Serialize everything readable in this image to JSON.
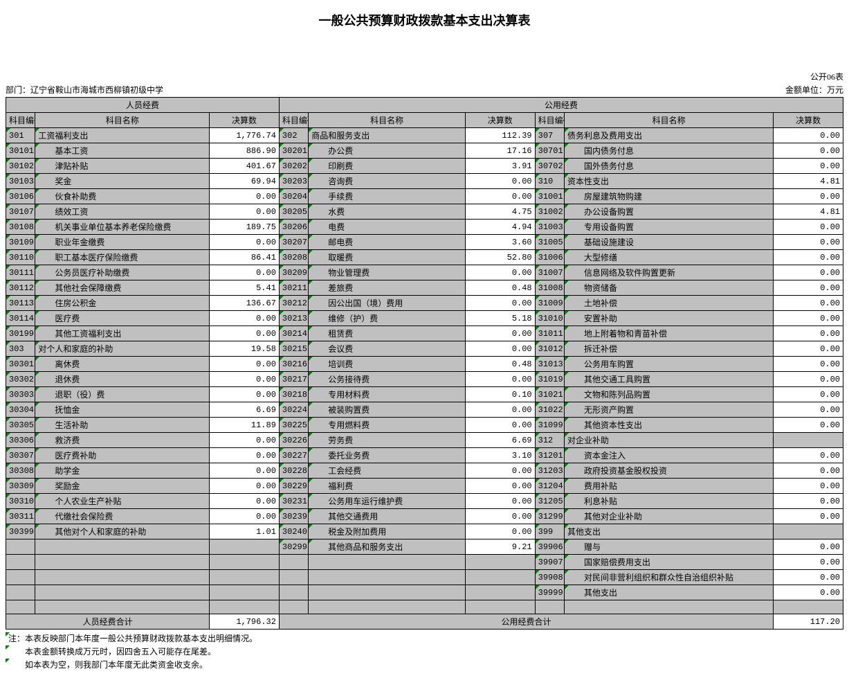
{
  "title": "一般公共预算财政拨款基本支出决算表",
  "form_code": "公开06表",
  "dept_label": "部门：",
  "dept": "辽宁省鞍山市海城市西柳镇初级中学",
  "unit": "金额单位：万元",
  "group_a": "人员经费",
  "group_b": "公用经费",
  "h_code": "科目编码",
  "h_name": "科目名称",
  "h_amt": "决算数",
  "col_a": [
    {
      "code": "301",
      "name": "工资福利支出",
      "amt": "1,776.74",
      "sub": false
    },
    {
      "code": "30101",
      "name": "基本工资",
      "amt": "886.90",
      "sub": true
    },
    {
      "code": "30102",
      "name": "津贴补贴",
      "amt": "401.67",
      "sub": true
    },
    {
      "code": "30103",
      "name": "奖金",
      "amt": "69.94",
      "sub": true
    },
    {
      "code": "30106",
      "name": "伙食补助费",
      "amt": "0.00",
      "sub": true
    },
    {
      "code": "30107",
      "name": "绩效工资",
      "amt": "0.00",
      "sub": true
    },
    {
      "code": "30108",
      "name": "机关事业单位基本养老保险缴费",
      "amt": "189.75",
      "sub": true
    },
    {
      "code": "30109",
      "name": "职业年金缴费",
      "amt": "0.00",
      "sub": true
    },
    {
      "code": "30110",
      "name": "职工基本医疗保险缴费",
      "amt": "86.41",
      "sub": true
    },
    {
      "code": "30111",
      "name": "公务员医疗补助缴费",
      "amt": "0.00",
      "sub": true
    },
    {
      "code": "30112",
      "name": "其他社会保障缴费",
      "amt": "5.41",
      "sub": true
    },
    {
      "code": "30113",
      "name": "住房公积金",
      "amt": "136.67",
      "sub": true
    },
    {
      "code": "30114",
      "name": "医疗费",
      "amt": "0.00",
      "sub": true
    },
    {
      "code": "30199",
      "name": "其他工资福利支出",
      "amt": "0.00",
      "sub": true
    },
    {
      "code": "303",
      "name": "对个人和家庭的补助",
      "amt": "19.58",
      "sub": false
    },
    {
      "code": "30301",
      "name": "离休费",
      "amt": "0.00",
      "sub": true
    },
    {
      "code": "30302",
      "name": "退休费",
      "amt": "0.00",
      "sub": true
    },
    {
      "code": "30303",
      "name": "退职（役）费",
      "amt": "0.00",
      "sub": true
    },
    {
      "code": "30304",
      "name": "抚恤金",
      "amt": "6.69",
      "sub": true
    },
    {
      "code": "30305",
      "name": "生活补助",
      "amt": "11.89",
      "sub": true
    },
    {
      "code": "30306",
      "name": "救济费",
      "amt": "0.00",
      "sub": true
    },
    {
      "code": "30307",
      "name": "医疗费补助",
      "amt": "0.00",
      "sub": true
    },
    {
      "code": "30308",
      "name": "助学金",
      "amt": "0.00",
      "sub": true
    },
    {
      "code": "30309",
      "name": "奖励金",
      "amt": "0.00",
      "sub": true
    },
    {
      "code": "30310",
      "name": "个人农业生产补贴",
      "amt": "0.00",
      "sub": true
    },
    {
      "code": "30311",
      "name": "代缴社会保险费",
      "amt": "0.00",
      "sub": true
    },
    {
      "code": "30399",
      "name": "其他对个人和家庭的补助",
      "amt": "1.01",
      "sub": true
    },
    {
      "code": "",
      "name": "",
      "amt": "",
      "sub": false
    },
    {
      "code": "",
      "name": "",
      "amt": "",
      "sub": false
    },
    {
      "code": "",
      "name": "",
      "amt": "",
      "sub": false
    },
    {
      "code": "",
      "name": "",
      "amt": "",
      "sub": false
    },
    {
      "code": "",
      "name": "",
      "amt": "",
      "sub": false
    }
  ],
  "col_b": [
    {
      "code": "302",
      "name": "商品和服务支出",
      "amt": "112.39",
      "sub": false
    },
    {
      "code": "30201",
      "name": "办公费",
      "amt": "17.16",
      "sub": true
    },
    {
      "code": "30202",
      "name": "印刷费",
      "amt": "3.91",
      "sub": true
    },
    {
      "code": "30203",
      "name": "咨询费",
      "amt": "0.00",
      "sub": true
    },
    {
      "code": "30204",
      "name": "手续费",
      "amt": "0.00",
      "sub": true
    },
    {
      "code": "30205",
      "name": "水费",
      "amt": "4.75",
      "sub": true
    },
    {
      "code": "30206",
      "name": "电费",
      "amt": "4.94",
      "sub": true
    },
    {
      "code": "30207",
      "name": "邮电费",
      "amt": "3.60",
      "sub": true
    },
    {
      "code": "30208",
      "name": "取暖费",
      "amt": "52.80",
      "sub": true
    },
    {
      "code": "30209",
      "name": "物业管理费",
      "amt": "0.00",
      "sub": true
    },
    {
      "code": "30211",
      "name": "差旅费",
      "amt": "0.48",
      "sub": true
    },
    {
      "code": "30212",
      "name": "因公出国（境）费用",
      "amt": "0.00",
      "sub": true
    },
    {
      "code": "30213",
      "name": "维修（护）费",
      "amt": "5.18",
      "sub": true
    },
    {
      "code": "30214",
      "name": "租赁费",
      "amt": "0.00",
      "sub": true
    },
    {
      "code": "30215",
      "name": "会议费",
      "amt": "0.00",
      "sub": true
    },
    {
      "code": "30216",
      "name": "培训费",
      "amt": "0.48",
      "sub": true
    },
    {
      "code": "30217",
      "name": "公务接待费",
      "amt": "0.00",
      "sub": true
    },
    {
      "code": "30218",
      "name": "专用材料费",
      "amt": "0.10",
      "sub": true
    },
    {
      "code": "30224",
      "name": "被装购置费",
      "amt": "0.00",
      "sub": true
    },
    {
      "code": "30225",
      "name": "专用燃料费",
      "amt": "0.00",
      "sub": true
    },
    {
      "code": "30226",
      "name": "劳务费",
      "amt": "6.69",
      "sub": true
    },
    {
      "code": "30227",
      "name": "委托业务费",
      "amt": "3.10",
      "sub": true
    },
    {
      "code": "30228",
      "name": "工会经费",
      "amt": "0.00",
      "sub": true
    },
    {
      "code": "30229",
      "name": "福利费",
      "amt": "0.00",
      "sub": true
    },
    {
      "code": "30231",
      "name": "公务用车运行维护费",
      "amt": "0.00",
      "sub": true
    },
    {
      "code": "30239",
      "name": "其他交通费用",
      "amt": "0.00",
      "sub": true
    },
    {
      "code": "30240",
      "name": "税金及附加费用",
      "amt": "0.00",
      "sub": true
    },
    {
      "code": "30299",
      "name": "其他商品和服务支出",
      "amt": "9.21",
      "sub": true
    },
    {
      "code": "",
      "name": "",
      "amt": "",
      "sub": false
    },
    {
      "code": "",
      "name": "",
      "amt": "",
      "sub": false
    },
    {
      "code": "",
      "name": "",
      "amt": "",
      "sub": false
    },
    {
      "code": "",
      "name": "",
      "amt": "",
      "sub": false
    }
  ],
  "col_c": [
    {
      "code": "307",
      "name": "债务利息及费用支出",
      "amt": "0.00",
      "sub": false
    },
    {
      "code": "30701",
      "name": "国内债务付息",
      "amt": "0.00",
      "sub": true
    },
    {
      "code": "30702",
      "name": "国外债务付息",
      "amt": "0.00",
      "sub": true
    },
    {
      "code": "310",
      "name": "资本性支出",
      "amt": "4.81",
      "sub": false
    },
    {
      "code": "31001",
      "name": "房屋建筑物购建",
      "amt": "0.00",
      "sub": true
    },
    {
      "code": "31002",
      "name": "办公设备购置",
      "amt": "4.81",
      "sub": true
    },
    {
      "code": "31003",
      "name": "专用设备购置",
      "amt": "0.00",
      "sub": true
    },
    {
      "code": "31005",
      "name": "基础设施建设",
      "amt": "0.00",
      "sub": true
    },
    {
      "code": "31006",
      "name": "大型修缮",
      "amt": "0.00",
      "sub": true
    },
    {
      "code": "31007",
      "name": "信息网络及软件购置更新",
      "amt": "0.00",
      "sub": true
    },
    {
      "code": "31008",
      "name": "物资储备",
      "amt": "0.00",
      "sub": true
    },
    {
      "code": "31009",
      "name": "土地补偿",
      "amt": "0.00",
      "sub": true
    },
    {
      "code": "31010",
      "name": "安置补助",
      "amt": "0.00",
      "sub": true
    },
    {
      "code": "31011",
      "name": "地上附着物和青苗补偿",
      "amt": "0.00",
      "sub": true
    },
    {
      "code": "31012",
      "name": "拆迁补偿",
      "amt": "0.00",
      "sub": true
    },
    {
      "code": "31013",
      "name": "公务用车购置",
      "amt": "0.00",
      "sub": true
    },
    {
      "code": "31019",
      "name": "其他交通工具购置",
      "amt": "0.00",
      "sub": true
    },
    {
      "code": "31021",
      "name": "文物和陈列品购置",
      "amt": "0.00",
      "sub": true
    },
    {
      "code": "31022",
      "name": "无形资产购置",
      "amt": "0.00",
      "sub": true
    },
    {
      "code": "31099",
      "name": "其他资本性支出",
      "amt": "0.00",
      "sub": true
    },
    {
      "code": "312",
      "name": "对企业补助",
      "amt": "",
      "sub": false
    },
    {
      "code": "31201",
      "name": "资本金注入",
      "amt": "0.00",
      "sub": true
    },
    {
      "code": "31203",
      "name": "政府投资基金股权投资",
      "amt": "0.00",
      "sub": true
    },
    {
      "code": "31204",
      "name": "费用补贴",
      "amt": "0.00",
      "sub": true
    },
    {
      "code": "31205",
      "name": "利息补贴",
      "amt": "0.00",
      "sub": true
    },
    {
      "code": "31299",
      "name": "其他对企业补助",
      "amt": "0.00",
      "sub": true
    },
    {
      "code": "399",
      "name": "其他支出",
      "amt": "",
      "sub": false
    },
    {
      "code": "39906",
      "name": "赠与",
      "amt": "0.00",
      "sub": true
    },
    {
      "code": "39907",
      "name": "国家赔偿费用支出",
      "amt": "0.00",
      "sub": true
    },
    {
      "code": "39908",
      "name": "对民间非营利组织和群众性自治组织补贴",
      "amt": "0.00",
      "sub": true
    },
    {
      "code": "39999",
      "name": "其他支出",
      "amt": "0.00",
      "sub": true
    },
    {
      "code": "",
      "name": "",
      "amt": "",
      "sub": false
    }
  ],
  "total_a_label": "人员经费合计",
  "total_a_amt": "1,796.32",
  "total_b_label": "公用经费合计",
  "total_b_amt": "117.20",
  "notes": [
    "注：本表反映部门本年度一般公共预算财政拨款基本支出明细情况。",
    "　　本表金额转换成万元时，因四舍五入可能存在尾差。",
    "　　如本表为空，则我部门本年度无此类资金收支余。"
  ]
}
